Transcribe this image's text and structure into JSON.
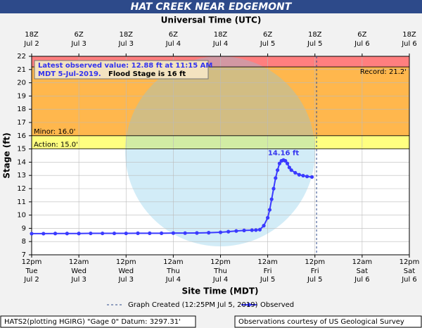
{
  "chart_data": {
    "type": "line",
    "title": "HAT CREEK NEAR EDGEMONT",
    "top_axis_label": "Universal Time (UTC)",
    "x_label": "Site Time (MDT)",
    "y_label": "Stage (ft)",
    "xlim": [
      0,
      96
    ],
    "ylim": [
      7,
      22
    ],
    "yticks": [
      7,
      8,
      9,
      10,
      11,
      12,
      13,
      14,
      15,
      16,
      17,
      18,
      19,
      20,
      21,
      22
    ],
    "xticks": [
      {
        "value": 0,
        "label": "12pm"
      },
      {
        "value": 12,
        "label": "12am"
      },
      {
        "value": 24,
        "label": "12pm"
      },
      {
        "value": 36,
        "label": "12am"
      },
      {
        "value": 48,
        "label": "12pm"
      },
      {
        "value": 60,
        "label": "12am"
      },
      {
        "value": 72,
        "label": "12pm"
      },
      {
        "value": 84,
        "label": "12am"
      },
      {
        "value": 96,
        "label": "12pm"
      }
    ],
    "xtick_days": [
      "Tue",
      "Wed",
      "Wed",
      "Thu",
      "Thu",
      "Fri",
      "Fri",
      "Sat",
      "Sat"
    ],
    "xtick_dates": [
      "Jul 2",
      "Jul 3",
      "Jul 3",
      "Jul 4",
      "Jul 4",
      "Jul 5",
      "Jul 5",
      "Jul 6",
      "Jul 6"
    ],
    "x2ticks": [
      {
        "value": 0,
        "label": "18Z"
      },
      {
        "value": 12,
        "label": "6Z"
      },
      {
        "value": 24,
        "label": "18Z"
      },
      {
        "value": 36,
        "label": "6Z"
      },
      {
        "value": 48,
        "label": "18Z"
      },
      {
        "value": 60,
        "label": "6Z"
      },
      {
        "value": 72,
        "label": "18Z"
      },
      {
        "value": 84,
        "label": "6Z"
      },
      {
        "value": 96,
        "label": "18Z"
      }
    ],
    "x2tick_dates": [
      "Jul 2",
      "Jul 3",
      "Jul 3",
      "Jul 4",
      "Jul 4",
      "Jul 5",
      "Jul 5",
      "Jul 6",
      "Jul 6"
    ],
    "grid": true,
    "thresholds": [
      {
        "value": 21.2,
        "label": "Record: 21.2'",
        "color": "#ff7f7f"
      },
      {
        "value": 16,
        "label": "Minor: 16.0'",
        "color": "#ffb74d"
      },
      {
        "value": 15,
        "label": "Action: 15.0'",
        "color": "#ffff80"
      }
    ],
    "created": {
      "value": 72.42,
      "label": "Graph Created (12:25PM Jul 5, 2019)"
    },
    "latest_observed": [
      "Latest observed value: 12.88 ft at 11:15 AM",
      "MDT 5-Jul-2019."
    ],
    "flood_stage_note": "Flood Stage is 16 ft",
    "peak_label": {
      "value": 14.16,
      "label": "14.16 ft"
    },
    "series": [
      {
        "name": "Observed",
        "color": "#3a3aff",
        "x": [
          0,
          3,
          6,
          9,
          12,
          15,
          18,
          21,
          24,
          27,
          30,
          33,
          36,
          39,
          42,
          45,
          48,
          50,
          52,
          54,
          56,
          57,
          58,
          59,
          60,
          60.5,
          61,
          61.5,
          62,
          62.5,
          63,
          63.5,
          64,
          64.5,
          65,
          65.5,
          66,
          67,
          68,
          69,
          70,
          71.25
        ],
        "values": [
          8.6,
          8.6,
          8.61,
          8.61,
          8.61,
          8.62,
          8.62,
          8.62,
          8.62,
          8.63,
          8.63,
          8.63,
          8.64,
          8.64,
          8.65,
          8.67,
          8.7,
          8.75,
          8.8,
          8.84,
          8.86,
          8.87,
          8.9,
          9.2,
          9.8,
          10.4,
          11.2,
          12.0,
          12.8,
          13.4,
          13.9,
          14.1,
          14.16,
          14.1,
          13.9,
          13.6,
          13.4,
          13.2,
          13.05,
          12.98,
          12.92,
          12.88
        ]
      }
    ],
    "footer_left": "HATS2(plotting HGIRG) \"Gage 0\" Datum: 3297.31'",
    "footer_right": "Observations courtesy of US Geological Survey"
  }
}
